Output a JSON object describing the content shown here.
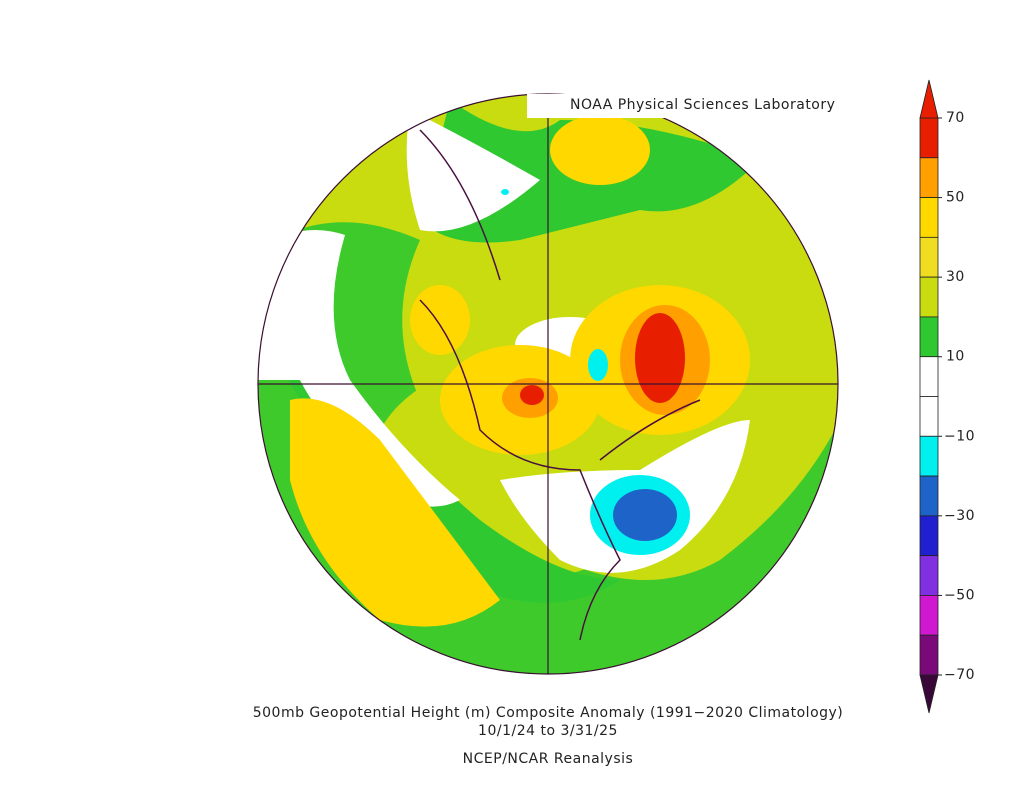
{
  "header": {
    "title": "NOAA Physical Sciences Laboratory"
  },
  "colorbar": {
    "lim": [
      -70,
      70
    ],
    "ticks": [
      70,
      50,
      30,
      10,
      {
        "value": -10,
        "label": "−10"
      },
      {
        "value": -30,
        "label": "−30"
      },
      {
        "value": -50,
        "label": "−50"
      },
      {
        "value": -70,
        "label": "−70"
      }
    ],
    "colors": [
      "#e81e00",
      "#ffa000",
      "#ffd800",
      "#f0dc20",
      "#c8dc10",
      "#30c830",
      "#ffffff",
      "#ffffff",
      "#00f0f0",
      "#1e64c8",
      "#2020d0",
      "#8030e0",
      "#d018d0",
      "#7a0a7a"
    ],
    "over_color": "#e81e00",
    "under_color": "#3a0838"
  },
  "caption": {
    "line1": "500mb Geopotential Height (m) Composite Anomaly (1991−2020 Climatology)",
    "line2": "10/1/24  to 3/31/25",
    "line3": "NCEP/NCAR Reanalysis"
  }
}
